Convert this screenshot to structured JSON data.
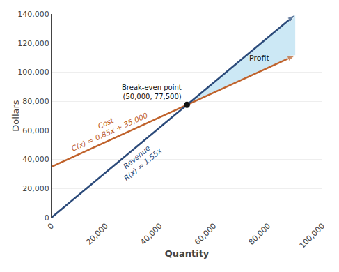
{
  "chart_data": {
    "type": "line",
    "xlabel": "Quantity",
    "ylabel": "Dollars",
    "xlim": [
      0,
      100000
    ],
    "ylim": [
      0,
      140000
    ],
    "xticks": [
      0,
      {
        "value": 20000,
        "label": "20,000"
      },
      {
        "value": 40000,
        "label": "40,000"
      },
      {
        "value": 60000,
        "label": "60,000"
      },
      {
        "value": 80000,
        "label": "80,000"
      },
      {
        "value": 100000,
        "label": "100,000"
      }
    ],
    "yticks": [
      0,
      {
        "value": 20000,
        "label": "20,000"
      },
      {
        "value": 40000,
        "label": "40,000"
      },
      {
        "value": 60000,
        "label": "60,000"
      },
      {
        "value": 80000,
        "label": "80,000"
      },
      {
        "value": 100000,
        "label": "100,000"
      },
      {
        "value": 120000,
        "label": "120,000"
      },
      {
        "value": 140000,
        "label": "140,000"
      }
    ],
    "grid": "y",
    "series": [
      {
        "type": "area",
        "color": "#cce8f5",
        "x": [
          50000,
          90000,
          90000
        ],
        "values": [
          77500,
          139500,
          111500
        ]
      },
      {
        "type": "line",
        "color": "#c0622b",
        "marker": "arrow",
        "x": [
          0,
          90000
        ],
        "values": [
          35000,
          111500
        ]
      },
      {
        "type": "line",
        "color": "#2b4a7a",
        "marker": "arrow",
        "x": [
          0,
          90000
        ],
        "values": [
          0,
          139500
        ]
      },
      {
        "type": "scatter",
        "color": "#111111",
        "marker": "circle",
        "x": [
          50000
        ],
        "values": [
          77500
        ]
      }
    ],
    "annotations": [
      {
        "text": "Cost\nC(x) = 0.85x + 35,000"
      },
      {
        "text": "Revenue\nR(x) = 1.55x"
      },
      {
        "text": "Break-even point\n(50,000, 77,500)"
      },
      {
        "text": "Profit"
      }
    ]
  }
}
